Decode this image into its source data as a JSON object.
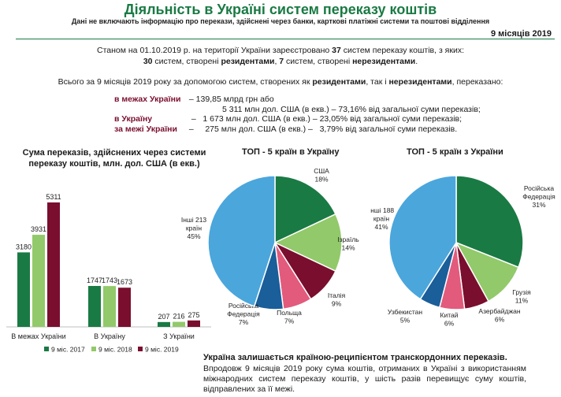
{
  "header": {
    "title": "Діяльність в Україні систем переказу коштів",
    "subtitle": "Дані не включають інформацію про перекази, здійснені через банки, карткові платіжні системи та поштові відділення",
    "period": "9 місяців 2019"
  },
  "intro": {
    "line1_a": "Станом на 01.10.2019 р. на території України зареєстровано ",
    "line1_b": "37",
    "line1_c": " систем переказу коштів, з яких:",
    "line2_a": "30",
    "line2_b": " систем, створені ",
    "line2_c": "резидентами",
    "line2_d": ", ",
    "line2_e": "7",
    "line2_f": " систем, створені ",
    "line2_g": "нерезидентами",
    "line2_h": ".",
    "line3_a": "Всього за 9 місяців 2019 року за допомогою систем, створених як ",
    "line3_b": "резидентами",
    "line3_c": ", так і ",
    "line3_d": "нерезидентами",
    "line3_e": ", переказано:"
  },
  "stats": {
    "r1_label": "в межах України",
    "r1_val": " – 139,85 млрд грн або",
    "r2_val": "5 311 млн дол. США (в екв.) – 73,16% від загальної суми переказів;",
    "r3_label": "в Україну",
    "r3_val": "  –   1 673 млн дол. США (в екв.) – 23,05% від загальної суми переказів;",
    "r4_label": "за межі України",
    "r4_val": " –     275 млн дол. США (в екв.) –   3,79% від загальної суми переказів."
  },
  "bar_title": "Сума переказів, здійснених через системи переказу коштів, млн. дол. США (в екв.)",
  "pie1_title": "ТОП - 5 країн в Україну",
  "pie2_title": "ТОП - 5 країн з України",
  "colors": {
    "dark_green": "#1a7a44",
    "light_green": "#92c96a",
    "maroon": "#7a0e2e",
    "blue": "#4ba6dc",
    "navy": "#1a5e9a",
    "pink": "#e25a7c",
    "accent": "#1a7a44"
  },
  "chart_data": [
    {
      "type": "bar",
      "title": "Сума переказів, здійснених через системи переказу коштів, млн. дол. США (в екв.)",
      "categories": [
        "В межах України",
        "В Україну",
        "З України"
      ],
      "series": [
        {
          "name": "9 міс. 2017",
          "values": [
            3180,
            1747,
            207
          ],
          "color": "#1a7a44"
        },
        {
          "name": "9 міс. 2018",
          "values": [
            3931,
            1743,
            216
          ],
          "color": "#92c96a"
        },
        {
          "name": "9 міс. 2019",
          "values": [
            5311,
            1673,
            275
          ],
          "color": "#7a0e2e"
        }
      ],
      "legend": "bottom",
      "grid": false
    },
    {
      "type": "pie",
      "title": "ТОП - 5 країн в Україну",
      "slices": [
        {
          "label": "США",
          "pct_label": "18%",
          "value": 18,
          "color": "#1a7a44"
        },
        {
          "label": "Ізраїль",
          "pct_label": "14%",
          "value": 14,
          "color": "#92c96a"
        },
        {
          "label": "Італія",
          "pct_label": "9%",
          "value": 9,
          "color": "#7a0e2e"
        },
        {
          "label": "Польща",
          "pct_label": "7%",
          "value": 7,
          "color": "#e25a7c"
        },
        {
          "label": "Російська Федерація",
          "pct_label": "7%",
          "value": 7,
          "color": "#1a5e9a"
        },
        {
          "label": "Інші 213 країн",
          "pct_label": "45%",
          "value": 45,
          "color": "#4ba6dc"
        }
      ]
    },
    {
      "type": "pie",
      "title": "ТОП - 5 країн з України",
      "slices": [
        {
          "label": "Російська Федерація",
          "pct_label": "31%",
          "value": 31,
          "color": "#1a7a44"
        },
        {
          "label": "Грузія",
          "pct_label": "11%",
          "value": 11,
          "color": "#92c96a"
        },
        {
          "label": "Азербайджан",
          "pct_label": "6%",
          "value": 6,
          "color": "#7a0e2e"
        },
        {
          "label": "Китай",
          "pct_label": "6%",
          "value": 6,
          "color": "#e25a7c"
        },
        {
          "label": "Узбекистан",
          "pct_label": "5%",
          "value": 5,
          "color": "#1a5e9a"
        },
        {
          "label": "Інші 188 країн",
          "pct_label": "41%",
          "value": 41,
          "color": "#4ba6dc"
        }
      ]
    }
  ],
  "bottom": {
    "heading": "Україна залишається країною-реципієнтом транскордонних переказів.",
    "text": "Впродовж 9 місяців 2019 року сума коштів, отриманих в Україні з використанням міжнародних систем переказу коштів, у шість разів перевищує суму коштів, відправлених за її межі."
  }
}
